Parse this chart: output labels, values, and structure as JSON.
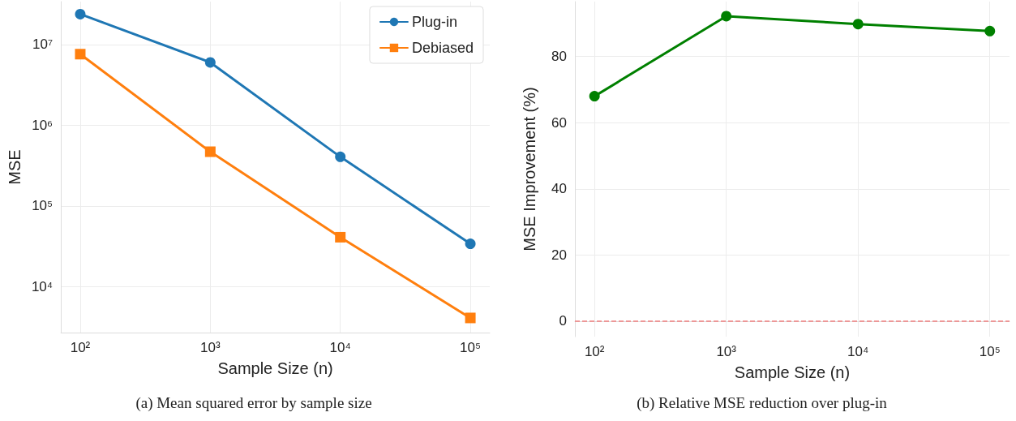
{
  "chart_data": [
    {
      "type": "line",
      "title": "(a) Mean squared error by sample size",
      "xlabel": "Sample Size (n)",
      "ylabel": "MSE",
      "x": [
        100,
        1000,
        10000,
        100000
      ],
      "series": [
        {
          "name": "Plug-in",
          "color": "#1f77b4",
          "marker": "circle",
          "values": [
            23800000,
            6000000,
            406000,
            34000
          ]
        },
        {
          "name": "Debiased",
          "color": "#ff7f0e",
          "marker": "square",
          "values": [
            7600000,
            470000,
            41000,
            4100
          ]
        }
      ],
      "log": "xy",
      "xlim": [
        71,
        141000
      ],
      "ylim": [
        2700,
        34000000
      ],
      "xticks": [
        {
          "value": 100,
          "label": "10²"
        },
        {
          "value": 1000,
          "label": "10³"
        },
        {
          "value": 10000,
          "label": "10⁴"
        },
        {
          "value": 100000,
          "label": "10⁵"
        }
      ],
      "yticks": [
        {
          "value": 10000,
          "label": "10⁴"
        },
        {
          "value": 100000,
          "label": "10⁵"
        },
        {
          "value": 1000000,
          "label": "10⁶"
        },
        {
          "value": 10000000,
          "label": "10⁷"
        }
      ],
      "grid": true,
      "legend": "top right",
      "line_style": "solid"
    },
    {
      "type": "line",
      "title": "(b) Relative MSE reduction over plug-in",
      "xlabel": "Sample Size (n)",
      "ylabel": "MSE Improvement (%)",
      "x": [
        100,
        1000,
        10000,
        100000
      ],
      "series": [
        {
          "color": "#008000",
          "marker": "circle",
          "values": [
            68,
            92.2,
            89.8,
            87.7
          ]
        }
      ],
      "log": "x",
      "xlim": [
        71,
        141000
      ],
      "ylim": [
        -4.7,
        96.6
      ],
      "xticks": [
        {
          "value": 100,
          "label": "10²"
        },
        {
          "value": 1000,
          "label": "10³"
        },
        {
          "value": 10000,
          "label": "10⁴"
        },
        {
          "value": 100000,
          "label": "10⁵"
        }
      ],
      "yticks": [
        0,
        20,
        40,
        60,
        80
      ],
      "ref_lines": [
        {
          "axis": "y",
          "value": 0,
          "color": "#f08080",
          "line_style": "dashed"
        }
      ],
      "grid": true,
      "legend": false,
      "line_style": "solid"
    }
  ]
}
